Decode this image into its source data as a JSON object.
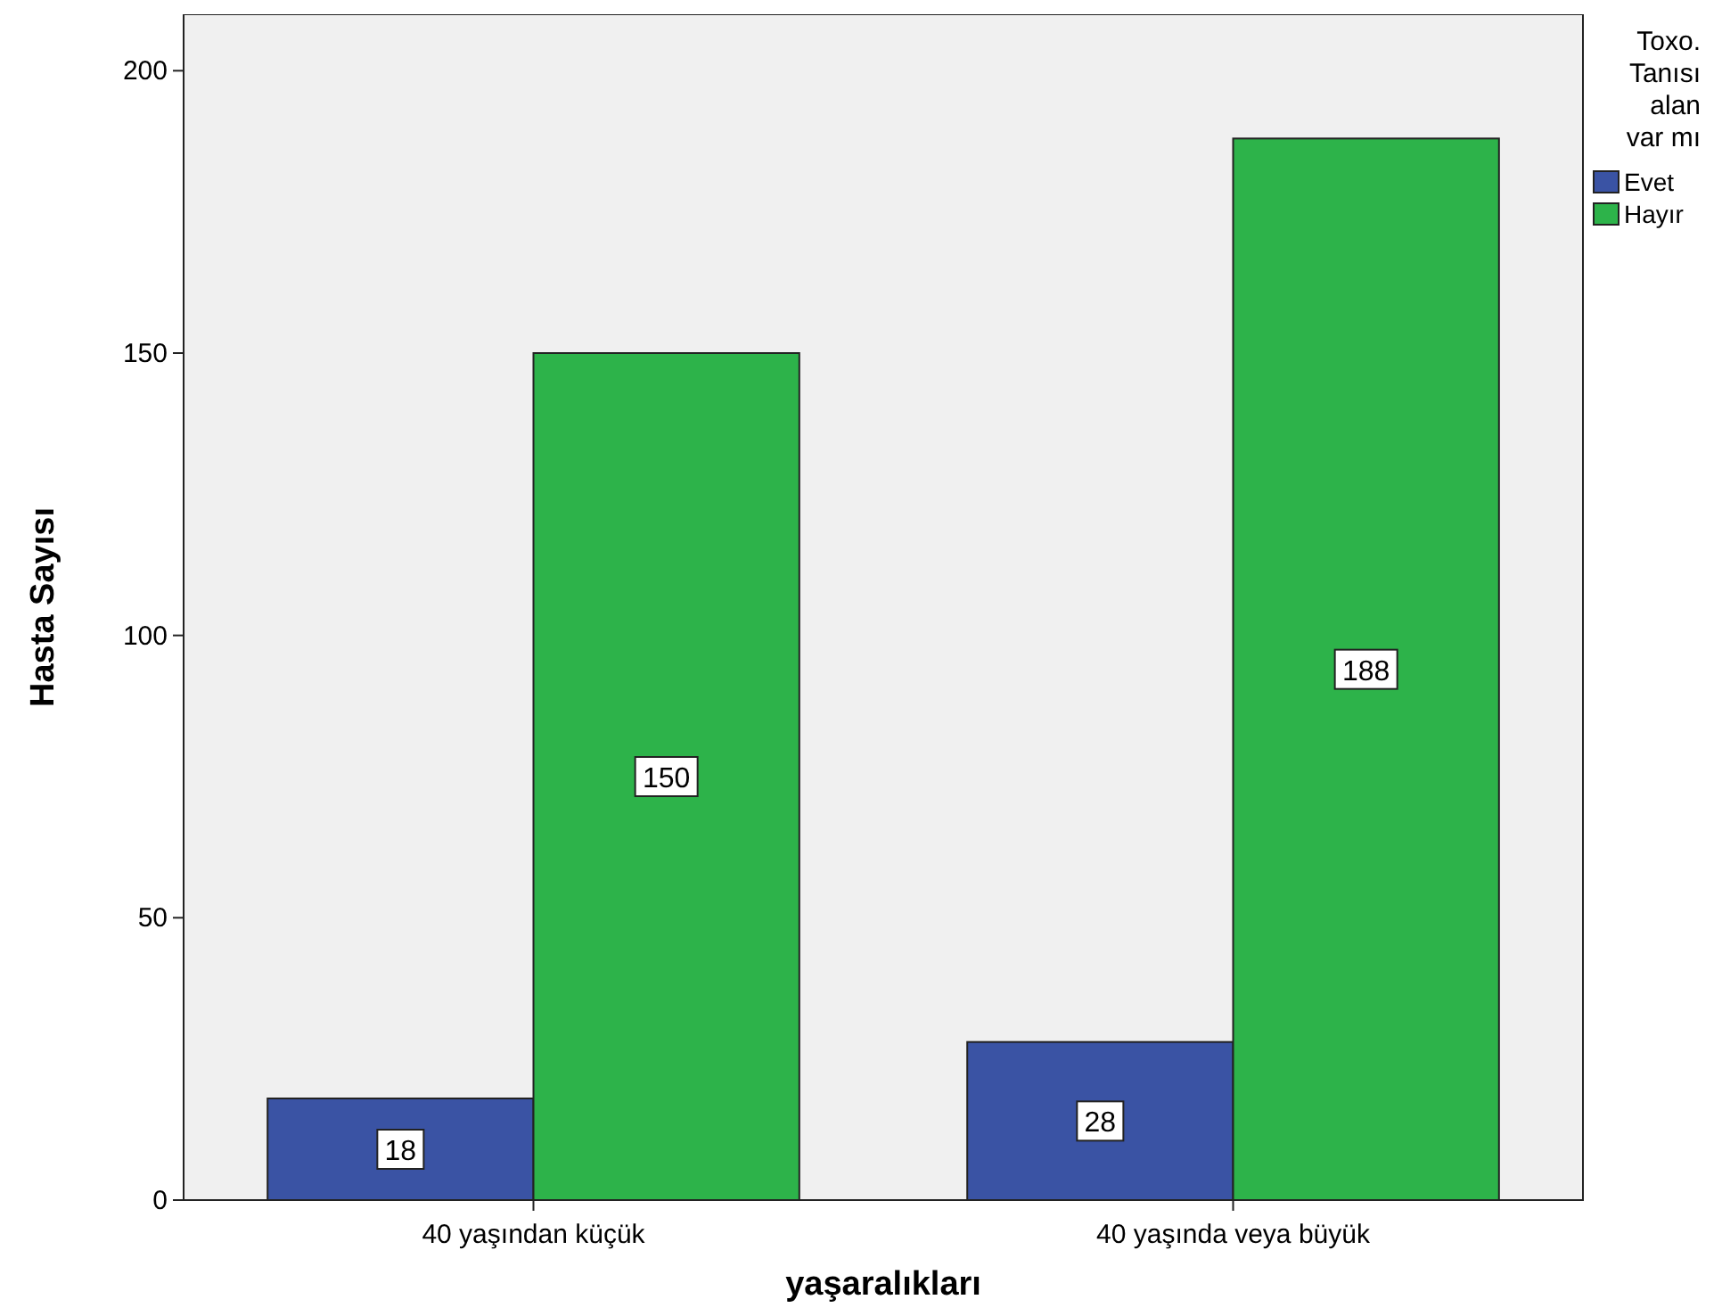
{
  "chart_data": {
    "type": "bar",
    "xlabel": "yaşaralıkları",
    "ylabel": "Hasta Sayısı",
    "legend_title": "Toxo. Tanısı alan var mı",
    "categories": [
      "40 yaşından küçük",
      "40 yaşında veya büyük"
    ],
    "series": [
      {
        "name": "Evet",
        "color": "#3a53a4",
        "values": [
          18,
          28
        ]
      },
      {
        "name": "Hayır",
        "color": "#2db34a",
        "values": [
          150,
          188
        ]
      }
    ],
    "ylim": [
      0,
      210
    ],
    "yticks": [
      0,
      50,
      100,
      150,
      200
    ],
    "data_labels": true,
    "legend": "right",
    "grid": false
  }
}
